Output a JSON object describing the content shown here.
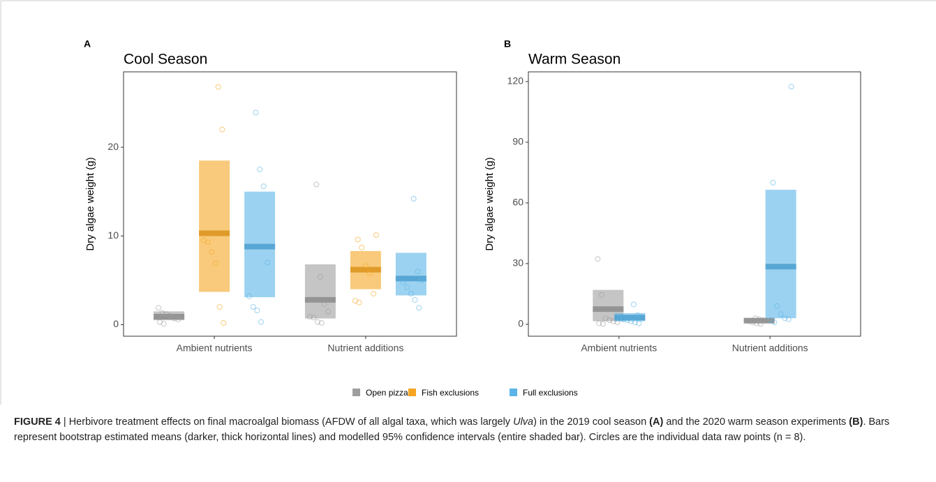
{
  "chart_data": [
    {
      "type": "crossbar",
      "panel_label": "A",
      "title": "Cool Season",
      "y_label": "Dry algae weight (g)",
      "categories": [
        "Ambient nutrients",
        "Nutrient additions"
      ],
      "ylim": [
        -1.3,
        28.5
      ],
      "yticks": [
        0,
        10,
        20
      ],
      "series": [
        {
          "color": "#9e9e9e",
          "means": [
            0.9,
            2.8
          ],
          "lower": [
            0.5,
            0.7
          ],
          "upper": [
            1.5,
            6.8
          ],
          "points": [
            [
              1.9,
              1.3,
              1.2,
              1.0,
              0.7,
              0.6,
              0.3,
              0.1
            ],
            [
              15.8,
              5.4,
              2.3,
              1.5,
              0.9,
              0.8,
              0.3,
              0.2
            ]
          ]
        },
        {
          "color": "#f5a623",
          "means": [
            10.3,
            6.2
          ],
          "lower": [
            3.7,
            4.0
          ],
          "upper": [
            18.5,
            8.3
          ],
          "points": [
            [
              26.8,
              22.0,
              9.5,
              9.3,
              8.2,
              6.9,
              2.0,
              0.2
            ],
            [
              10.1,
              9.6,
              8.7,
              6.6,
              5.8,
              3.5,
              2.7,
              2.5
            ]
          ]
        },
        {
          "color": "#5ab4e8",
          "means": [
            8.8,
            5.2
          ],
          "lower": [
            3.1,
            3.3
          ],
          "upper": [
            15.0,
            8.1
          ],
          "points": [
            [
              23.9,
              17.5,
              15.6,
              7.0,
              3.2,
              2.0,
              1.6,
              0.3
            ],
            [
              14.2,
              6.0,
              5.0,
              4.8,
              4.2,
              3.5,
              2.8,
              1.9
            ]
          ]
        }
      ]
    },
    {
      "type": "crossbar",
      "panel_label": "B",
      "title": "Warm Season",
      "y_label": "Dry algae weight (g)",
      "categories": [
        "Ambient nutrients",
        "Nutrient additions"
      ],
      "ylim": [
        -5.9,
        124.8
      ],
      "yticks": [
        0,
        30,
        60,
        90,
        120
      ],
      "series": [
        {
          "color": "#9e9e9e",
          "means": [
            7.5,
            1.8
          ],
          "lower": [
            1.5,
            0.5
          ],
          "upper": [
            17.0,
            3.0
          ],
          "points": [
            [
              32.3,
              14.5,
              3.0,
              2.0,
              1.5,
              1.0,
              0.5,
              0.2
            ],
            [
              3.0,
              2.5,
              2.0,
              1.8,
              1.5,
              1.0,
              0.5,
              0.2
            ]
          ]
        },
        {
          "color": "#5ab4e8",
          "means": [
            3.3,
            28.5
          ],
          "lower": [
            1.5,
            3.0
          ],
          "upper": [
            5.5,
            66.5
          ],
          "points": [
            [
              9.8,
              4.5,
              3.0,
              2.5,
              2.0,
              1.5,
              1.0,
              0.5
            ],
            [
              117.5,
              70.0,
              9.0,
              5.0,
              3.0,
              2.5,
              2.0,
              1.0
            ]
          ]
        }
      ]
    }
  ],
  "legend": [
    {
      "name": "Open pizzas",
      "color": "#9e9e9e"
    },
    {
      "name": "Fish exclusions",
      "color": "#f5a623"
    },
    {
      "name": "Full exclusions",
      "color": "#5ab4e8"
    }
  ],
  "caption": [
    "FIGURE 4",
    " | Herbivore treatment effects on final macroalgal biomass (AFDW of all algal taxa, which was largely ",
    "Ulva",
    ") in the 2019 cool season ",
    "(A)",
    " and the 2020 warm season experiments ",
    "(B)",
    ". Bars represent bootstrap estimated means (darker, thick horizontal lines) and modelled 95% confidence intervals (entire shaded bar). Circles are the individual data raw points (n = 8)."
  ]
}
